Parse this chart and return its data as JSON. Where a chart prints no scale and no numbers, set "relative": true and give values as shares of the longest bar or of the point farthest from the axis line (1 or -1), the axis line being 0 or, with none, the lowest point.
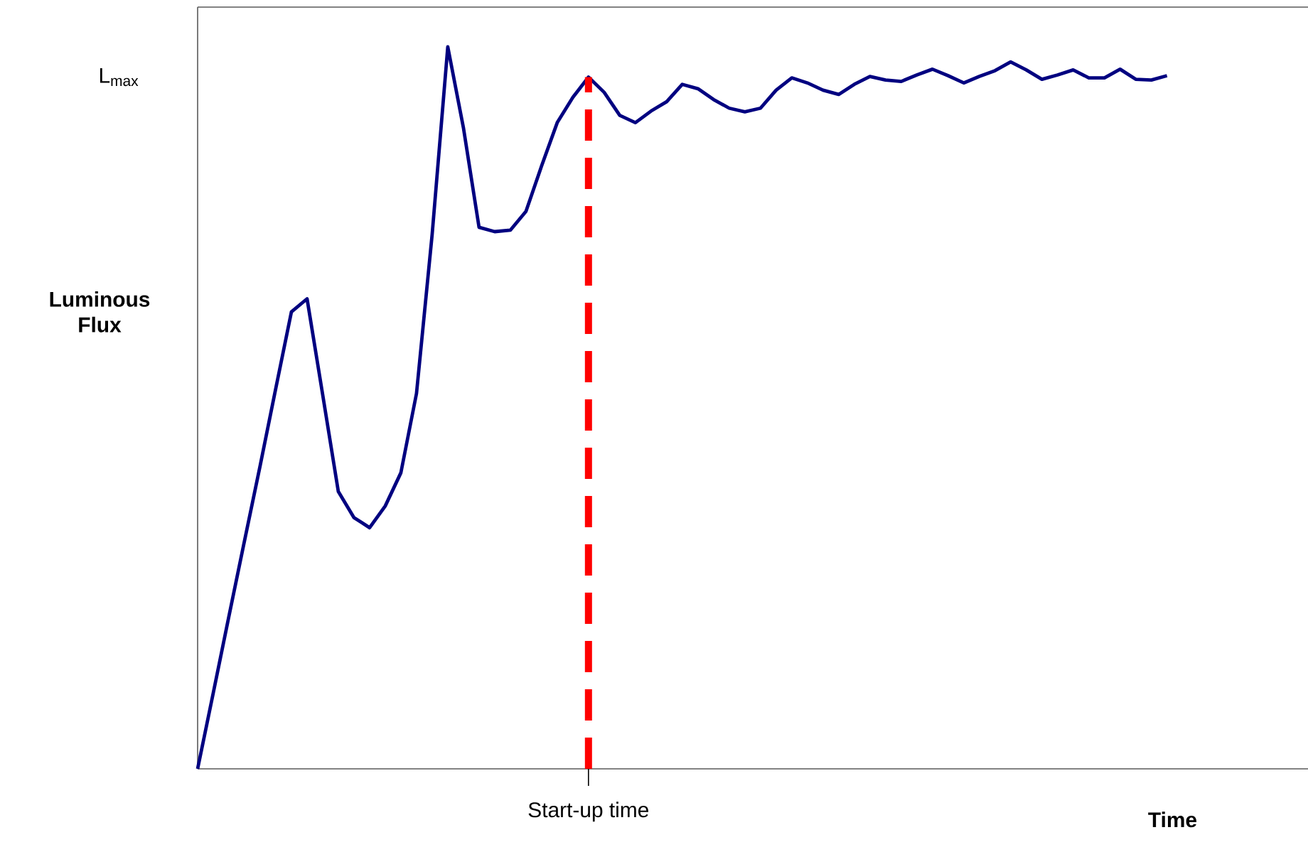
{
  "chart_data": {
    "type": "line",
    "relative": true,
    "xlabel": "Time",
    "ylabel": "Luminous Flux",
    "categories": [
      null,
      null,
      null,
      null,
      null,
      null,
      null,
      null,
      null,
      null,
      null,
      null,
      null,
      null,
      null,
      null,
      null,
      null,
      null,
      null,
      null,
      null,
      null,
      null,
      null,
      null,
      null,
      null,
      null,
      null,
      null,
      null,
      null,
      null,
      null,
      null,
      null,
      null,
      null,
      null,
      null,
      null,
      null,
      null,
      null,
      null,
      null,
      null,
      null,
      null,
      null,
      null,
      null,
      null,
      null,
      null,
      null,
      null,
      null,
      null,
      null,
      null,
      null
    ],
    "annotations": [
      "L$_{max}$",
      "Start-up time"
    ],
    "series": [
      {
        "color": "#000080",
        "values": [
          0,
          0.105,
          0.211,
          0.316,
          0.42,
          0.527,
          0.633,
          0.651,
          0.518,
          0.384,
          0.348,
          0.334,
          0.364,
          0.41,
          0.52,
          0.74,
          1,
          0.888,
          0.75,
          0.744,
          0.746,
          0.772,
          0.835,
          0.895,
          0.93,
          0.958,
          0.937,
          0.905,
          0.895,
          0.911,
          0.924,
          0.948,
          0.942,
          0.927,
          0.915,
          0.91,
          0.915,
          0.94,
          0.957,
          0.95,
          0.94,
          0.934,
          0.948,
          0.959,
          0.954,
          0.952,
          0.961,
          0.969,
          0.96,
          0.95,
          0.959,
          0.967,
          0.979,
          0.968,
          0.955,
          0.961,
          0.968,
          0.957,
          0.957,
          0.969,
          0.955,
          0.954,
          0.96
        ]
      }
    ]
  }
}
